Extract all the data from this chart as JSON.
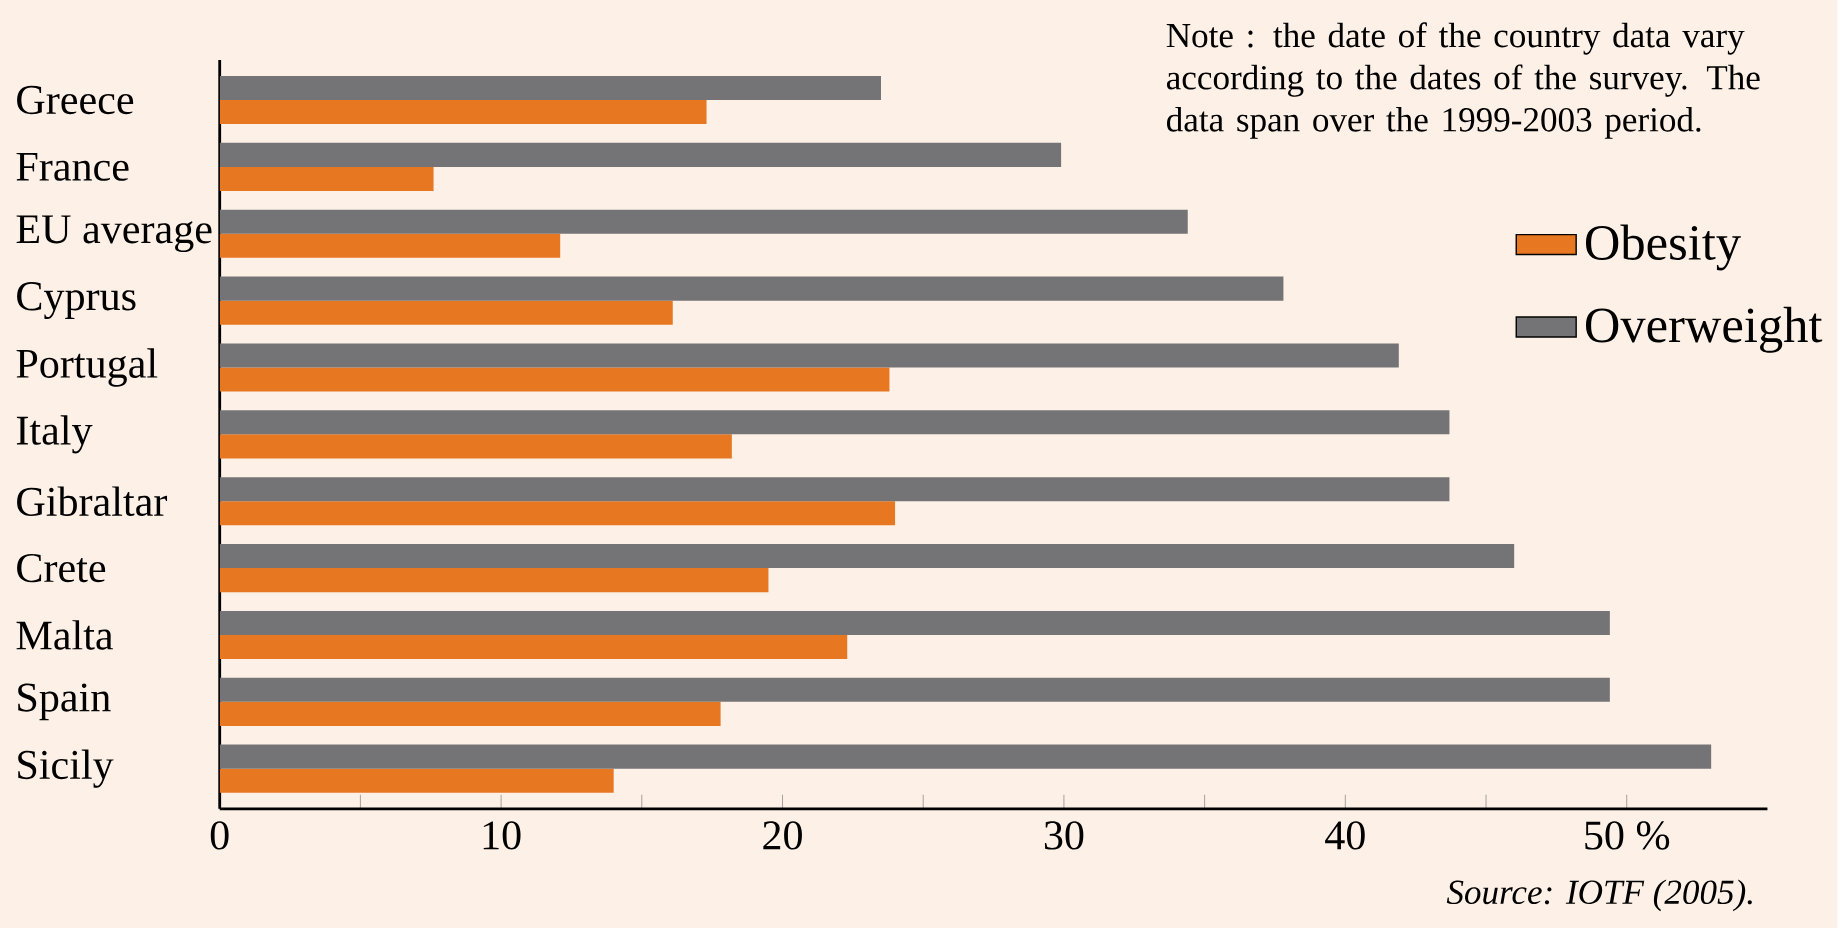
{
  "chart_data": {
    "type": "bar",
    "orientation": "horizontal",
    "categories": [
      "Greece",
      "France",
      "EU average",
      "Cyprus",
      "Portugal",
      "Italy",
      "Gibraltar",
      "Crete",
      "Malta",
      "Spain",
      "Sicily"
    ],
    "series": [
      {
        "name": "Obesity",
        "color": "#e87722",
        "values": [
          17.3,
          7.6,
          12.1,
          16.1,
          23.8,
          18.2,
          24.0,
          19.5,
          22.3,
          17.8,
          14.0
        ]
      },
      {
        "name": "Overweight",
        "color": "#747477",
        "values": [
          23.5,
          29.9,
          34.4,
          37.8,
          41.9,
          43.7,
          43.7,
          46.0,
          49.4,
          49.4,
          53.0
        ]
      }
    ],
    "xlim": [
      0,
      55
    ],
    "xticks": [
      0,
      {
        "value": 5,
        "label": null
      },
      10,
      {
        "value": 15,
        "label": null
      },
      20,
      {
        "value": 25,
        "label": null
      },
      30,
      {
        "value": 35,
        "label": null
      },
      40,
      {
        "value": 45,
        "label": null
      },
      {
        "value": 50,
        "label": "50 %"
      }
    ],
    "legend": "right",
    "grid": false,
    "annotations": [
      "Note : the date of the country data vary according to the dates of the survey. The data span over the 1999-2003 period.",
      "*Source: IOTF (2005).*"
    ]
  }
}
